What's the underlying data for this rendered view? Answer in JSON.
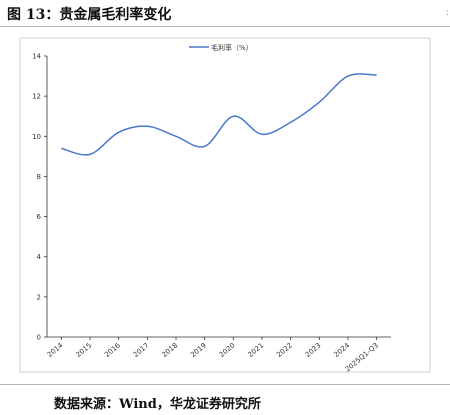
{
  "header": {
    "figure_title": "图 13：贵金属毛利率变化"
  },
  "footer": {
    "source": "数据来源：Wind，华龙证券研究所"
  },
  "chart_data": {
    "type": "line",
    "title": "",
    "xlabel": "",
    "ylabel": "",
    "categories": [
      "2014",
      "2015",
      "2016",
      "2017",
      "2018",
      "2019",
      "2020",
      "2021",
      "2022",
      "2023",
      "2024",
      "2025Q1-Q3"
    ],
    "series": [
      {
        "name": "毛利率（%）",
        "color": "#4a78c8",
        "values": [
          9.4,
          9.1,
          10.2,
          10.5,
          10.0,
          9.5,
          11.0,
          10.1,
          10.7,
          11.7,
          13.0,
          13.05
        ]
      }
    ],
    "ylim": [
      0,
      14
    ],
    "yticks": [
      0,
      2,
      4,
      6,
      8,
      10,
      12,
      14
    ],
    "grid": false,
    "legend_position": "top-center",
    "line_style": "smooth"
  }
}
